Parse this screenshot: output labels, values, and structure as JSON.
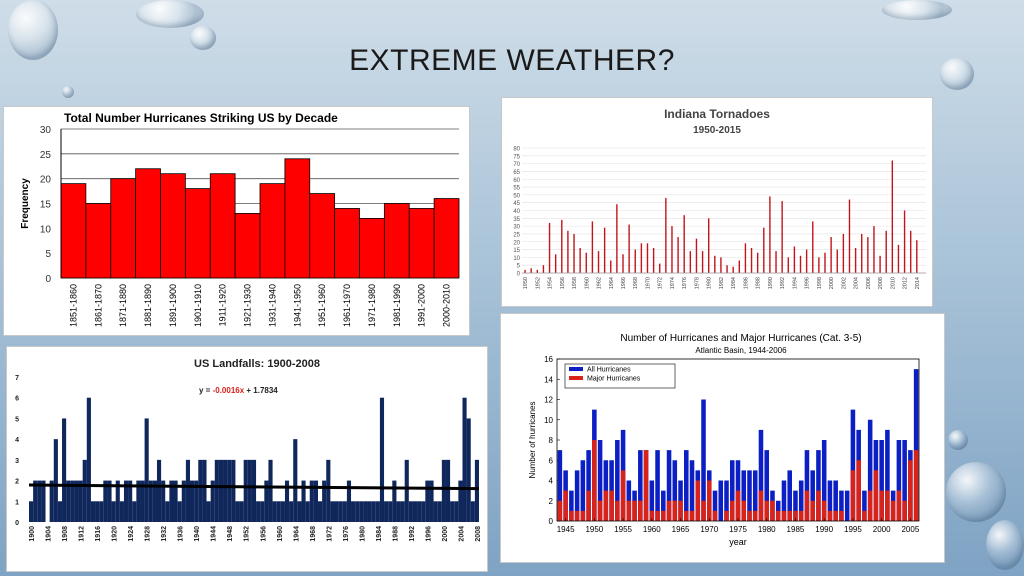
{
  "slide": {
    "title": "EXTREME WEATHER?"
  },
  "decor": {
    "drop_icon": "water-droplet-icon"
  },
  "chart_data": [
    {
      "id": "hurricanes_decade",
      "type": "bar",
      "title": "Total Number Hurricanes Striking US by Decade",
      "ylabel": "Frequency",
      "xlabel": "",
      "ylim": [
        0,
        30
      ],
      "yticks": [
        0,
        5,
        10,
        15,
        20,
        25,
        30
      ],
      "grid": true,
      "bar_color": "#ff0000",
      "categories": [
        "1851-1860",
        "1861-1870",
        "1871-1880",
        "1881-1890",
        "1891-1900",
        "1901-1910",
        "1911-1920",
        "1921-1930",
        "1931-1940",
        "1941-1950",
        "1951-1960",
        "1961-1970",
        "1971-1980",
        "1981-1990",
        "1991-2000",
        "2000-2010"
      ],
      "values": [
        19,
        15,
        20,
        22,
        21,
        18,
        21,
        13,
        19,
        24,
        17,
        14,
        12,
        15,
        14,
        16
      ]
    },
    {
      "id": "indiana_tornadoes",
      "type": "bar",
      "title": "Indiana Tornadoes",
      "subtitle": "1950-2015",
      "ylim": [
        0,
        80
      ],
      "yticks": [
        0,
        5,
        10,
        15,
        20,
        25,
        30,
        35,
        40,
        45,
        50,
        55,
        60,
        65,
        70,
        75,
        80
      ],
      "grid": true,
      "bar_color": "#c0151b",
      "x_start": 1950,
      "xtick_labels": [
        "1950",
        "1952",
        "1954",
        "1956",
        "1958",
        "1960",
        "1962",
        "1964",
        "1966",
        "1968",
        "1970",
        "1972",
        "1974",
        "1976",
        "1978",
        "1980",
        "1982",
        "1984",
        "1986",
        "1988",
        "1990",
        "1992",
        "1994",
        "1996",
        "1998",
        "2000",
        "2002",
        "2004",
        "2006",
        "2008",
        "2010",
        "2012",
        "2014"
      ],
      "values": [
        2,
        3,
        2,
        5,
        32,
        12,
        34,
        27,
        25,
        16,
        13,
        33,
        14,
        29,
        8,
        44,
        12,
        31,
        15,
        19,
        19,
        16,
        6,
        48,
        30,
        23,
        37,
        14,
        22,
        14,
        35,
        11,
        10,
        5,
        4,
        8,
        19,
        16,
        13,
        29,
        49,
        14,
        46,
        10,
        17,
        11,
        15,
        33,
        10,
        13,
        23,
        15,
        25,
        47,
        16,
        25,
        23,
        30,
        11,
        27,
        72,
        18,
        40,
        27,
        21,
        0
      ]
    },
    {
      "id": "us_landfalls",
      "type": "bar",
      "title": "US Landfalls: 1900-2008",
      "equation": {
        "prefix": "y = ",
        "slope": "-0.0016x",
        "rest": " + 1.7834"
      },
      "ylim": [
        0,
        7
      ],
      "yticks": [
        0,
        1,
        2,
        3,
        4,
        5,
        6,
        7
      ],
      "bar_color": "#10275c",
      "trend_color": "#000000",
      "trend": {
        "y_start": 1.7834,
        "slope": -0.0016
      },
      "x_start": 1900,
      "xtick_labels": [
        "1900",
        "1904",
        "1908",
        "1912",
        "1916",
        "1920",
        "1924",
        "1928",
        "1932",
        "1936",
        "1940",
        "1944",
        "1948",
        "1952",
        "1956",
        "1960",
        "1964",
        "1968",
        "1972",
        "1976",
        "1980",
        "1984",
        "1988",
        "1992",
        "1996",
        "2000",
        "2004",
        "2008"
      ],
      "values": [
        1,
        2,
        2,
        2,
        0,
        2,
        4,
        1,
        5,
        2,
        2,
        2,
        2,
        3,
        6,
        1,
        1,
        1,
        2,
        2,
        1,
        2,
        1,
        2,
        2,
        1,
        2,
        2,
        5,
        2,
        2,
        3,
        2,
        1,
        2,
        2,
        1,
        2,
        3,
        2,
        2,
        3,
        3,
        1,
        2,
        3,
        3,
        3,
        3,
        3,
        1,
        1,
        3,
        3,
        3,
        1,
        1,
        2,
        3,
        1,
        1,
        1,
        2,
        1,
        4,
        1,
        2,
        1,
        2,
        2,
        1,
        2,
        3,
        1,
        1,
        1,
        1,
        2,
        1,
        1,
        1,
        1,
        1,
        1,
        1,
        6,
        1,
        1,
        2,
        1,
        1,
        3,
        1,
        1,
        1,
        1,
        2,
        2,
        1,
        1,
        3,
        3,
        1,
        1,
        2,
        6,
        5,
        1,
        3
      ]
    },
    {
      "id": "hurricanes_major",
      "type": "bar",
      "title": "Number of Hurricanes and Major Hurricanes (Cat. 3-5)",
      "subtitle": "Atlantic Basin, 1944-2006",
      "xlabel": "year",
      "ylabel": "Number of hurricanes",
      "ylim": [
        0,
        16
      ],
      "yticks": [
        0,
        2,
        4,
        6,
        8,
        10,
        12,
        14,
        16
      ],
      "xtick_labels": [
        "1945",
        "1950",
        "1955",
        "1960",
        "1965",
        "1970",
        "1975",
        "1980",
        "1985",
        "1990",
        "1995",
        "2000",
        "2005"
      ],
      "x_start": 1944,
      "series": [
        {
          "name": "All Hurricanes",
          "color": "#0b1fc4",
          "values": [
            7,
            5,
            3,
            5,
            6,
            7,
            11,
            8,
            6,
            6,
            8,
            9,
            4,
            3,
            7,
            7,
            4,
            7,
            3,
            7,
            6,
            4,
            7,
            6,
            5,
            12,
            5,
            3,
            4,
            4,
            6,
            6,
            5,
            5,
            5,
            9,
            7,
            3,
            2,
            4,
            5,
            3,
            4,
            7,
            5,
            7,
            8,
            4,
            4,
            3,
            3,
            11,
            9,
            3,
            10,
            8,
            8,
            9,
            3,
            8,
            8,
            7,
            15
          ]
        },
        {
          "name": "Major Hurricanes",
          "color": "#d8231a",
          "values": [
            2,
            3,
            1,
            1,
            1,
            3,
            8,
            2,
            3,
            3,
            2,
            5,
            2,
            2,
            2,
            7,
            1,
            1,
            1,
            2,
            2,
            2,
            1,
            1,
            4,
            2,
            4,
            1,
            0,
            1,
            2,
            3,
            2,
            1,
            1,
            3,
            2,
            2,
            1,
            1,
            1,
            1,
            1,
            3,
            2,
            3,
            2,
            1,
            1,
            1,
            0,
            5,
            6,
            1,
            3,
            5,
            3,
            3,
            2,
            3,
            2,
            6,
            7
          ]
        }
      ]
    }
  ]
}
